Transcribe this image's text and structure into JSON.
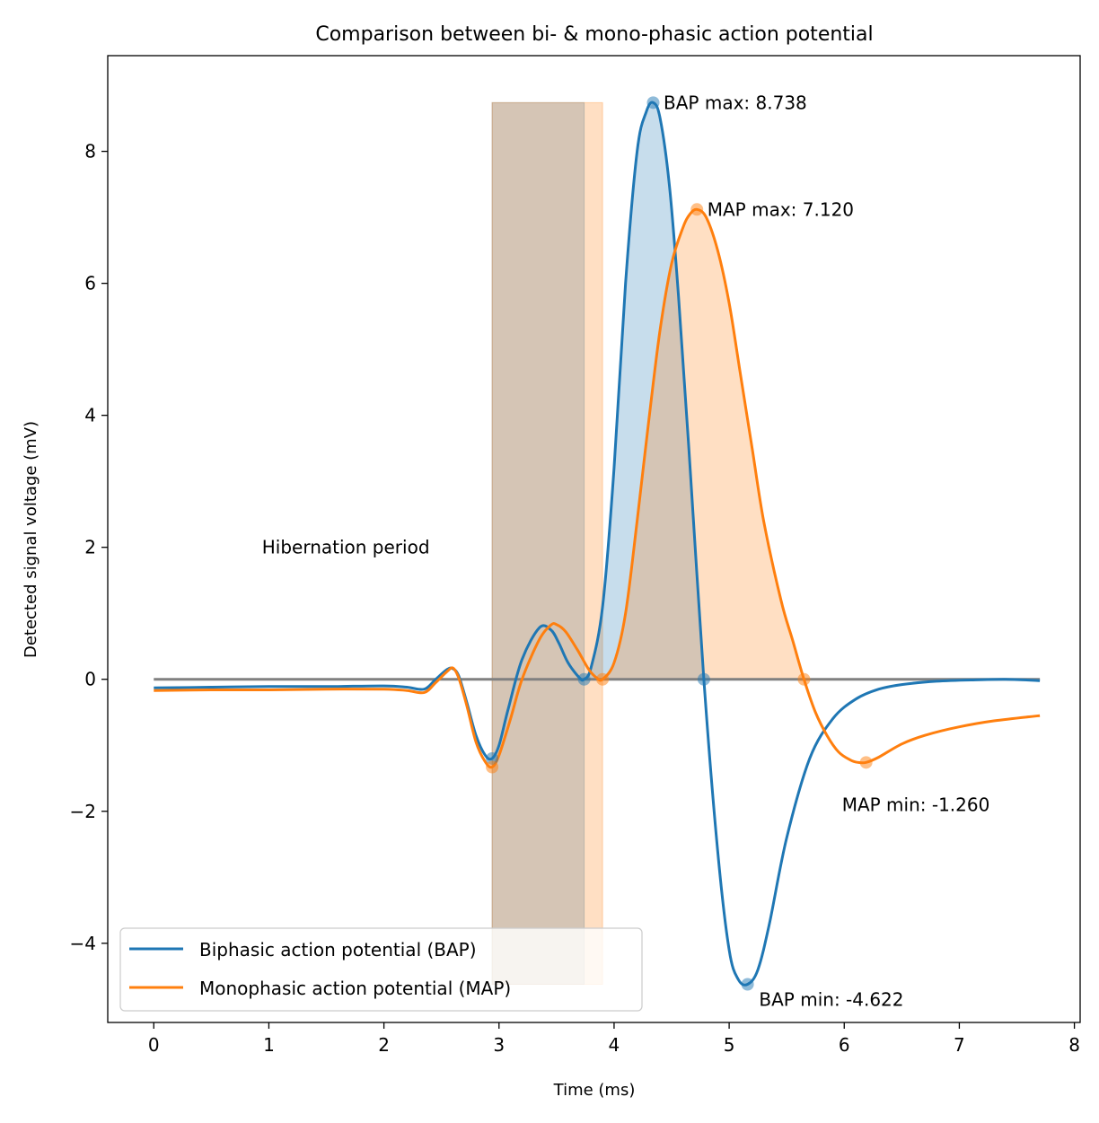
{
  "chart_data": {
    "type": "line",
    "title": "Comparison between bi- & mono-phasic action potential",
    "xlabel": "Time (ms)",
    "ylabel": "Detected signal voltage (mV)",
    "xlim": [
      -0.4,
      8.05
    ],
    "ylim": [
      -5.2,
      9.45
    ],
    "xticks": [
      0,
      1,
      2,
      3,
      4,
      5,
      6,
      7,
      8
    ],
    "yticks": [
      -4,
      -2,
      0,
      2,
      4,
      6,
      8
    ],
    "xtick_labels": [
      "0",
      "1",
      "2",
      "3",
      "4",
      "5",
      "6",
      "7",
      "8"
    ],
    "ytick_labels": [
      "−4",
      "−2",
      "0",
      "2",
      "4",
      "6",
      "8"
    ],
    "grid": false,
    "legend_position": "bottom-left",
    "baseline": {
      "x": [
        0,
        7.7
      ],
      "y": 0,
      "color": "#808080"
    },
    "series": [
      {
        "name": "Biphasic action potential (BAP)",
        "color": "#1f77b4",
        "x": [
          0,
          0.5,
          1.0,
          1.5,
          2.0,
          2.2,
          2.35,
          2.45,
          2.55,
          2.6,
          2.65,
          2.72,
          2.8,
          2.88,
          2.94,
          3.0,
          3.08,
          3.2,
          3.35,
          3.45,
          3.52,
          3.6,
          3.7,
          3.74,
          3.8,
          3.9,
          4.0,
          4.1,
          4.2,
          4.28,
          4.34,
          4.4,
          4.48,
          4.56,
          4.65,
          4.78,
          4.9,
          5.0,
          5.08,
          5.16,
          5.25,
          5.35,
          5.5,
          5.7,
          5.9,
          6.1,
          6.3,
          6.5,
          6.8,
          7.1,
          7.4,
          7.7
        ],
        "y": [
          -0.13,
          -0.12,
          -0.11,
          -0.11,
          -0.1,
          -0.12,
          -0.15,
          0.0,
          0.15,
          0.16,
          0.05,
          -0.35,
          -0.85,
          -1.15,
          -1.2,
          -1.0,
          -0.45,
          0.3,
          0.78,
          0.75,
          0.55,
          0.25,
          0.02,
          0.0,
          0.18,
          1.1,
          3.2,
          6.0,
          8.0,
          8.6,
          8.738,
          8.5,
          7.5,
          5.8,
          3.5,
          0.0,
          -2.6,
          -4.1,
          -4.55,
          -4.622,
          -4.4,
          -3.7,
          -2.4,
          -1.2,
          -0.6,
          -0.3,
          -0.15,
          -0.08,
          -0.03,
          -0.01,
          0.0,
          -0.02
        ],
        "markers": [
          {
            "x": 2.94,
            "y": -1.2
          },
          {
            "x": 3.74,
            "y": 0.0
          },
          {
            "x": 4.34,
            "y": 8.738
          },
          {
            "x": 4.78,
            "y": 0.0
          },
          {
            "x": 5.16,
            "y": -4.622
          }
        ],
        "fill_region": [
          3.74,
          4.78
        ]
      },
      {
        "name": "Monophasic action potential (MAP)",
        "color": "#ff7f0e",
        "x": [
          0,
          0.5,
          1.0,
          1.5,
          2.0,
          2.2,
          2.35,
          2.45,
          2.55,
          2.6,
          2.65,
          2.72,
          2.8,
          2.88,
          2.94,
          3.0,
          3.1,
          3.2,
          3.35,
          3.45,
          3.5,
          3.58,
          3.68,
          3.78,
          3.85,
          3.9,
          4.0,
          4.1,
          4.2,
          4.3,
          4.4,
          4.5,
          4.6,
          4.66,
          4.72,
          4.8,
          4.9,
          5.0,
          5.1,
          5.2,
          5.3,
          5.45,
          5.55,
          5.65,
          5.75,
          5.85,
          5.95,
          6.05,
          6.12,
          6.19,
          6.3,
          6.5,
          6.7,
          7.0,
          7.3,
          7.7
        ],
        "y": [
          -0.17,
          -0.16,
          -0.16,
          -0.15,
          -0.15,
          -0.17,
          -0.2,
          -0.05,
          0.12,
          0.17,
          0.02,
          -0.4,
          -0.95,
          -1.25,
          -1.33,
          -1.15,
          -0.6,
          0.0,
          0.6,
          0.82,
          0.83,
          0.72,
          0.45,
          0.15,
          0.02,
          0.0,
          0.25,
          1.0,
          2.4,
          3.9,
          5.3,
          6.3,
          6.85,
          7.05,
          7.12,
          7.0,
          6.5,
          5.7,
          4.6,
          3.5,
          2.4,
          1.2,
          0.6,
          0.0,
          -0.5,
          -0.85,
          -1.1,
          -1.22,
          -1.26,
          -1.26,
          -1.18,
          -0.98,
          -0.85,
          -0.72,
          -0.63,
          -0.55
        ],
        "markers": [
          {
            "x": 2.94,
            "y": -1.33
          },
          {
            "x": 3.9,
            "y": 0.0
          },
          {
            "x": 4.72,
            "y": 7.12
          },
          {
            "x": 5.65,
            "y": 0.0
          },
          {
            "x": 6.19,
            "y": -1.26
          }
        ],
        "fill_region": [
          3.9,
          5.65
        ]
      }
    ],
    "shaded_spans": [
      {
        "x0": 2.94,
        "x1": 3.74,
        "y0": -4.622,
        "y1": 8.738,
        "color": "#1f77b4"
      },
      {
        "x0": 2.94,
        "x1": 3.9,
        "y0": -4.622,
        "y1": 8.738,
        "color": "#ff7f0e"
      }
    ],
    "annotations": [
      {
        "text": "BAP max: 8.738",
        "x": 4.43,
        "y": 8.738,
        "anchor": "start"
      },
      {
        "text": "MAP max: 7.120",
        "x": 4.81,
        "y": 7.12,
        "anchor": "start"
      },
      {
        "text": "MAP min: -1.260",
        "x": 5.98,
        "y": -1.9,
        "anchor": "start"
      },
      {
        "text": "BAP min: -4.622",
        "x": 5.26,
        "y": -4.85,
        "anchor": "start"
      },
      {
        "text": "Hibernation period",
        "x": 0.94,
        "y": 2.0,
        "anchor": "start"
      }
    ]
  }
}
